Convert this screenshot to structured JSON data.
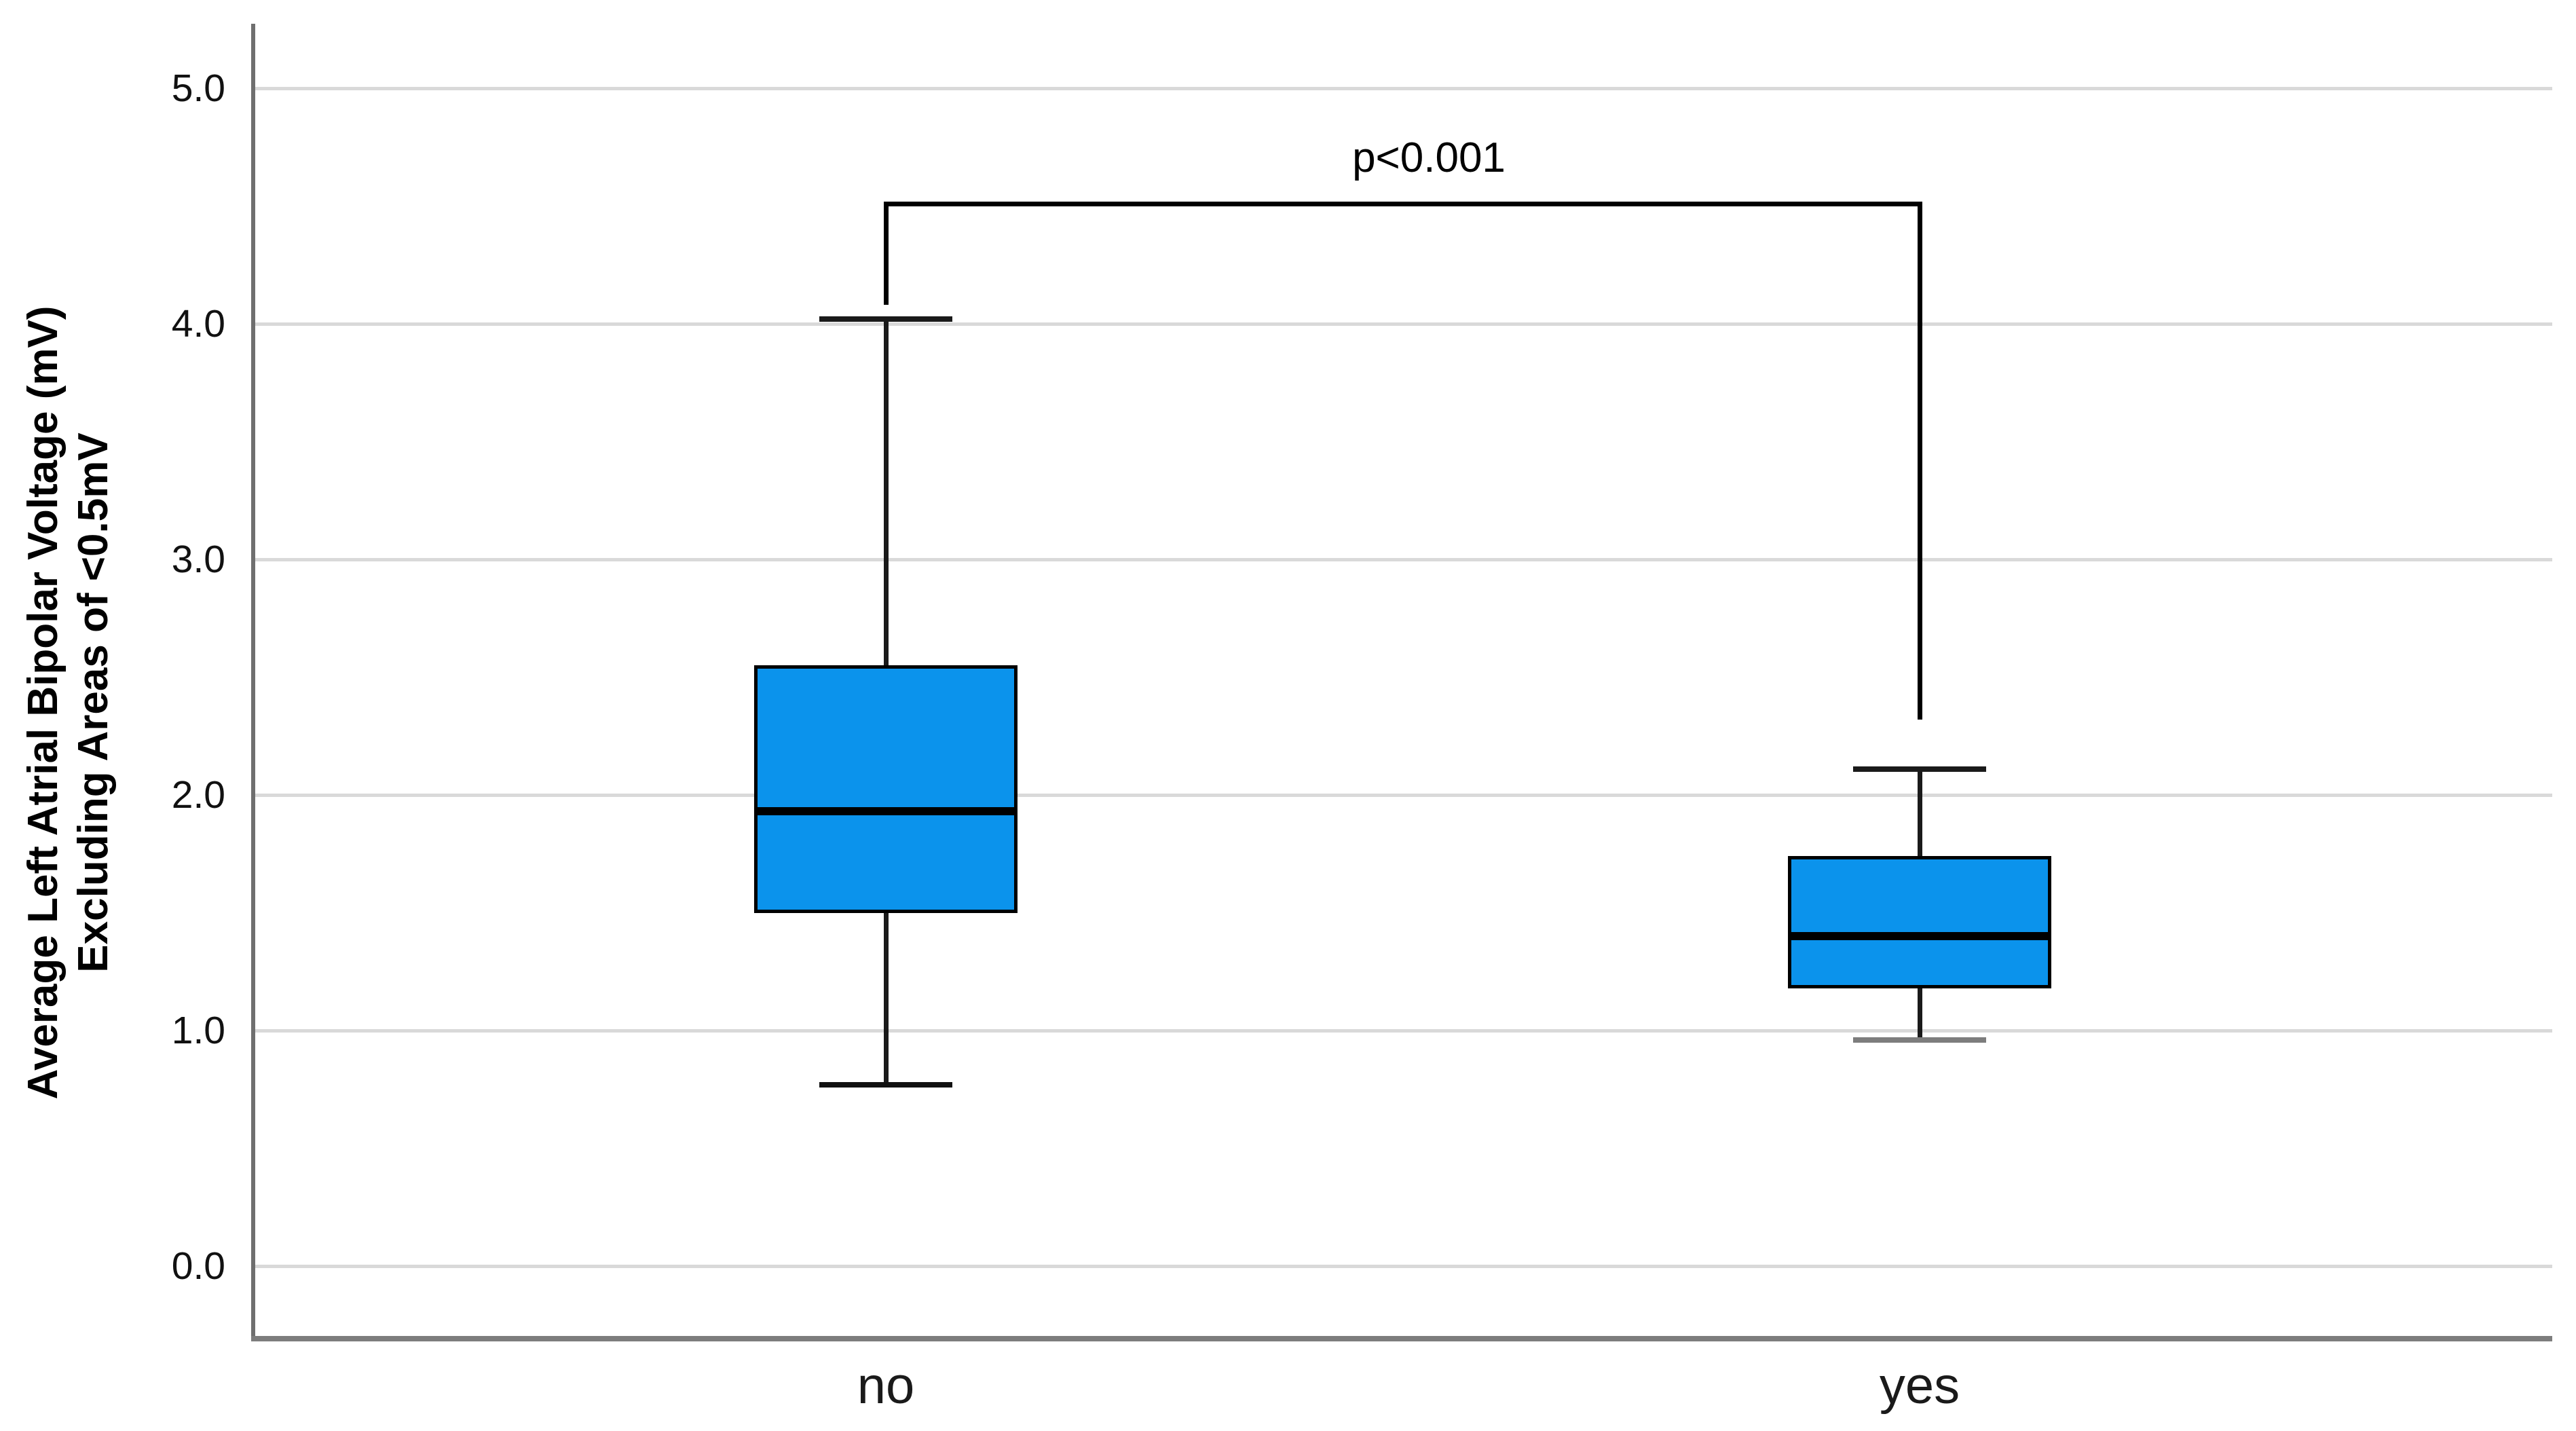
{
  "chart_data": {
    "type": "boxplot",
    "title": "",
    "ylabel_line1": "Average Left Atrial Bipolar Voltage (mV)",
    "ylabel_line2": "Excluding Areas of <0.5mV",
    "xlabel": "",
    "y_ticks": [
      5.0,
      4.0,
      3.0,
      2.0,
      1.0,
      0.0
    ],
    "y_tick_labels": [
      "5.0",
      "4.0",
      "3.0",
      "2.0",
      "1.0",
      "0.0"
    ],
    "ylim": [
      -0.3,
      5.3
    ],
    "grid": "horizontal",
    "legend": "none",
    "categories": [
      "no",
      "yes"
    ],
    "series": [
      {
        "category": "no",
        "whisker_low": 0.77,
        "q1": 1.5,
        "median": 1.93,
        "q3": 2.55,
        "whisker_high": 4.02,
        "whisker_low_cap_color": "#111111"
      },
      {
        "category": "yes",
        "whisker_low": 0.96,
        "q1": 1.18,
        "median": 1.4,
        "q3": 1.74,
        "whisker_high": 2.11,
        "whisker_low_cap_color": "#7d7d7d"
      }
    ],
    "annotation": {
      "text": "p<0.001",
      "bracket_top_mv": 4.52,
      "bracket_left_end_mv": 4.08,
      "bracket_right_end_mv": 2.32
    },
    "colors": {
      "box_fill": "#0b93ec",
      "box_border": "#000000",
      "median": "#000000",
      "whisker": "#1a1a1a",
      "gridline": "#d9d9d9",
      "y_axis": "#6f6f6f",
      "x_axis": "#7d7d7d",
      "background": "#ffffff",
      "text": "#000000"
    }
  }
}
